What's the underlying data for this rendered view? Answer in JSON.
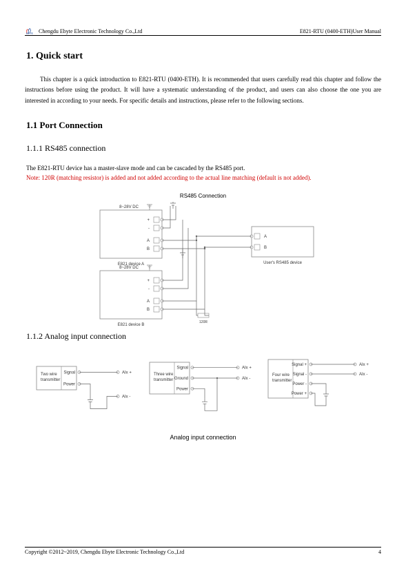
{
  "header": {
    "company": "Chengdu Ebyte Electronic Technology Co.,Ltd",
    "doc_title": "E821-RTU (0400-ETH)User Manual",
    "logo_text": "EBYTE",
    "logo_color": "#1b4fa3",
    "logo_accent": "#e83a2a"
  },
  "sections": {
    "h1": "1. Quick start",
    "intro": "This chapter is a quick introduction to E821-RTU (0400-ETH). It is recommended that users carefully read this chapter and follow the instructions before using the product. It will have a systematic understanding of the product, and users can also choose the one you are interested in according to your needs. For specific details and instructions, please refer to the following sections.",
    "h2": "1.1 Port Connection",
    "h3a": "1.1.1 RS485 connection",
    "rs485_line": "The E821-RTU device has a master-slave mode and can be cascaded by the RS485 port.",
    "rs485_note": "Note: 120R (matching resistor) is added and not added according to the actual line matching (default is not added).",
    "rs485_diagram_title": "RS485 Connection",
    "h3b": "1.1.2 Analog input connection",
    "analog_caption": "Analog input connection"
  },
  "diagram1": {
    "voltage_label_a": "8~28V DC",
    "voltage_label_b": "8~28V DC",
    "terminals": [
      "+",
      "-",
      "A",
      "B"
    ],
    "device_a": "E821 device A",
    "device_b": "E821 device B",
    "user_device": "User's RS485 device",
    "user_terminals": [
      "A",
      "B"
    ],
    "r120": "120R",
    "box_stroke": "#888888",
    "wire_stroke": "#666666",
    "text_color": "#333333",
    "font_size": 6
  },
  "diagram2": {
    "box1": {
      "title": "Two wire\ntransmitter",
      "pins": [
        "Signal",
        "Power"
      ]
    },
    "box2": {
      "title": "Three wire\ntransmitter",
      "pins": [
        "Signal",
        "Ground",
        "Power"
      ]
    },
    "box3": {
      "title": "Four wire\ntransmitter",
      "pins": [
        "Signal +",
        "Signal -",
        "Power -",
        "Power +"
      ]
    },
    "aix_plus": "AIx +",
    "aix_minus": "AIx -",
    "box_stroke": "#888888",
    "wire_stroke": "#666666",
    "text_color": "#333333",
    "font_size": 6
  },
  "footer": {
    "copyright": "Copyright ©2012~2019, Chengdu Ebyte Electronic Technology Co.,Ltd",
    "page_number": "4"
  }
}
